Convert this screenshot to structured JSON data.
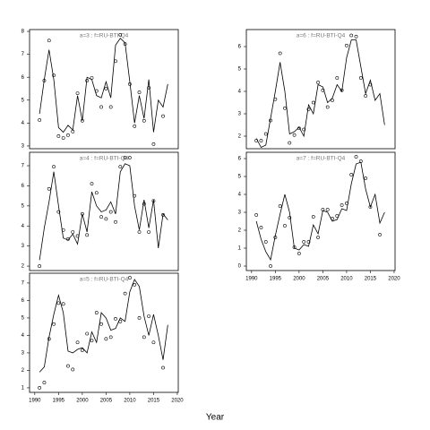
{
  "xlabel": "Year",
  "chart_data": [
    {
      "type": "line",
      "title": "a=3 : f=RU-BTI-Q4",
      "x": [
        1991,
        1992,
        1993,
        1994,
        1995,
        1996,
        1997,
        1998,
        1999,
        2000,
        2001,
        2002,
        2003,
        2004,
        2005,
        2006,
        2007,
        2008,
        2009,
        2010,
        2011,
        2012,
        2013,
        2014,
        2015,
        2016,
        2017,
        2018
      ],
      "series": [
        {
          "style": "points",
          "color": "#000000",
          "values": [
            4.13,
            5.85,
            7.6,
            6.08,
            3.43,
            3.35,
            3.47,
            3.63,
            5.3,
            4.1,
            5.85,
            5.97,
            5.4,
            4.7,
            5.5,
            4.7,
            6.7,
            7.85,
            7.45,
            5.7,
            3.86,
            5.34,
            4.1,
            5.54,
            3.08,
            null,
            4.3,
            null
          ]
        },
        {
          "style": "line",
          "color": "#000000",
          "values": [
            4.4,
            5.9,
            7.2,
            5.9,
            3.8,
            3.6,
            3.9,
            3.7,
            5.2,
            4.1,
            6.0,
            5.9,
            5.2,
            5.1,
            5.8,
            5.1,
            7.4,
            7.7,
            7.5,
            5.8,
            4.0,
            5.2,
            4.2,
            5.9,
            3.6,
            5.0,
            4.7,
            5.7
          ]
        }
      ],
      "xlim": [
        1988.9,
        2020.2
      ],
      "ylim": [
        2.88,
        8.08
      ],
      "yticks": [
        3,
        4,
        5,
        6,
        7,
        8
      ]
    },
    {
      "type": "line",
      "title": "a=4 : f=RU-BTI-Q4",
      "x": [
        1991,
        1992,
        1993,
        1994,
        1995,
        1996,
        1997,
        1998,
        1999,
        2000,
        2001,
        2002,
        2003,
        2004,
        2005,
        2006,
        2007,
        2008,
        2009,
        2010,
        2011,
        2012,
        2013,
        2014,
        2015,
        2016,
        2017,
        2018
      ],
      "series": [
        {
          "style": "points",
          "color": "#000000",
          "values": [
            2.0,
            null,
            5.85,
            6.95,
            4.7,
            3.8,
            3.35,
            3.7,
            3.5,
            4.6,
            3.55,
            6.1,
            5.65,
            4.45,
            4.35,
            4.7,
            4.2,
            6.95,
            7.4,
            7.4,
            5.5,
            3.7,
            5.1,
            3.7,
            5.25,
            null,
            4.55,
            null
          ]
        },
        {
          "style": "line",
          "color": "#000000",
          "values": [
            2.3,
            3.9,
            5.2,
            6.7,
            5.0,
            3.4,
            3.3,
            3.6,
            3.1,
            4.6,
            3.7,
            5.7,
            5.0,
            4.7,
            4.8,
            5.2,
            4.6,
            6.7,
            7.1,
            7.0,
            5.0,
            3.8,
            5.3,
            3.9,
            5.3,
            2.9,
            4.6,
            4.3
          ]
        }
      ],
      "xlim": [
        1988.9,
        2020.2
      ],
      "ylim": [
        1.78,
        7.67
      ],
      "yticks": [
        2,
        3,
        4,
        5,
        6,
        7
      ]
    },
    {
      "type": "line",
      "title": "a=5 : f=RU-BTI-Q4",
      "x": [
        1991,
        1992,
        1993,
        1994,
        1995,
        1996,
        1997,
        1998,
        1999,
        2000,
        2001,
        2002,
        2003,
        2004,
        2005,
        2006,
        2007,
        2008,
        2009,
        2010,
        2011,
        2012,
        2013,
        2014,
        2015,
        2016,
        2017,
        2018
      ],
      "series": [
        {
          "style": "points",
          "color": "#000000",
          "values": [
            1.0,
            1.3,
            3.8,
            4.65,
            5.85,
            5.8,
            2.25,
            2.05,
            3.6,
            3.15,
            4.1,
            3.7,
            5.3,
            4.65,
            3.8,
            3.9,
            4.95,
            4.8,
            6.4,
            7.3,
            6.9,
            5.0,
            3.9,
            5.1,
            3.6,
            null,
            2.15,
            null
          ]
        },
        {
          "style": "line",
          "color": "#000000",
          "values": [
            1.9,
            2.2,
            3.9,
            5.2,
            6.3,
            5.3,
            3.1,
            3.0,
            3.2,
            3.3,
            3.0,
            4.2,
            3.6,
            5.3,
            5.0,
            4.3,
            4.4,
            5.0,
            4.8,
            6.5,
            7.2,
            6.8,
            5.1,
            4.0,
            5.2,
            4.0,
            2.6,
            4.6
          ]
        }
      ],
      "xlim": [
        1988.9,
        2020.2
      ],
      "ylim": [
        0.74,
        7.56
      ],
      "yticks": [
        1,
        2,
        3,
        4,
        5,
        6,
        7
      ],
      "xticks": [
        1990,
        1995,
        2000,
        2005,
        2010,
        2015,
        2020
      ]
    },
    {
      "type": "line",
      "title": "a=6 : f=RU-BTI-Q4",
      "x": [
        1991,
        1992,
        1993,
        1994,
        1995,
        1996,
        1997,
        1998,
        1999,
        2000,
        2001,
        2002,
        2003,
        2004,
        2005,
        2006,
        2007,
        2008,
        2009,
        2010,
        2011,
        2012,
        2013,
        2014,
        2015,
        2016,
        2017,
        2018
      ],
      "series": [
        {
          "style": "points",
          "color": "#000000",
          "values": [
            1.8,
            1.8,
            2.1,
            2.7,
            3.65,
            5.7,
            3.25,
            1.7,
            2.05,
            2.35,
            2.3,
            3.2,
            3.5,
            4.4,
            4.05,
            3.3,
            3.6,
            4.6,
            4.05,
            6.05,
            6.5,
            6.45,
            4.6,
            3.8,
            4.3,
            null,
            null,
            null
          ]
        },
        {
          "style": "line",
          "color": "#000000",
          "values": [
            1.9,
            1.5,
            1.6,
            2.8,
            4.0,
            5.3,
            4.0,
            2.1,
            2.2,
            2.4,
            2.0,
            3.4,
            3.0,
            4.3,
            4.2,
            3.5,
            3.7,
            4.3,
            4.0,
            5.5,
            6.3,
            6.3,
            5.1,
            3.9,
            4.5,
            3.6,
            3.9,
            2.5
          ]
        }
      ],
      "xlim": [
        1988.9,
        2020.2
      ],
      "ylim": [
        1.44,
        6.76
      ],
      "yticks": [
        2,
        3,
        4,
        5,
        6
      ]
    },
    {
      "type": "line",
      "title": "a=7 : f=RU-BTI-Q4",
      "x": [
        1991,
        1992,
        1993,
        1994,
        1995,
        1996,
        1997,
        1998,
        1999,
        2000,
        2001,
        2002,
        2003,
        2004,
        2005,
        2006,
        2007,
        2008,
        2009,
        2010,
        2011,
        2012,
        2013,
        2014,
        2015,
        2016,
        2017,
        2018
      ],
      "series": [
        {
          "style": "points",
          "color": "#000000",
          "values": [
            2.85,
            2.15,
            1.35,
            0.0,
            1.6,
            3.35,
            2.25,
            2.7,
            1.05,
            0.7,
            1.35,
            1.35,
            2.75,
            1.6,
            3.15,
            3.15,
            2.65,
            2.8,
            3.4,
            3.5,
            5.1,
            6.1,
            5.85,
            4.9,
            3.3,
            null,
            1.75,
            null
          ]
        },
        {
          "style": "line",
          "color": "#000000",
          "values": [
            2.5,
            1.5,
            0.8,
            0.35,
            1.7,
            2.9,
            4.0,
            3.0,
            1.0,
            0.9,
            1.2,
            1.1,
            2.3,
            1.8,
            3.1,
            3.0,
            2.5,
            2.6,
            3.2,
            3.1,
            4.6,
            5.7,
            5.8,
            4.3,
            3.3,
            4.0,
            2.4,
            3.0
          ]
        }
      ],
      "xlim": [
        1988.9,
        2020.2
      ],
      "ylim": [
        -0.25,
        6.35
      ],
      "yticks": [
        0,
        1,
        2,
        3,
        4,
        5,
        6
      ],
      "xticks": [
        1990,
        1995,
        2000,
        2005,
        2010,
        2015,
        2020
      ]
    }
  ]
}
